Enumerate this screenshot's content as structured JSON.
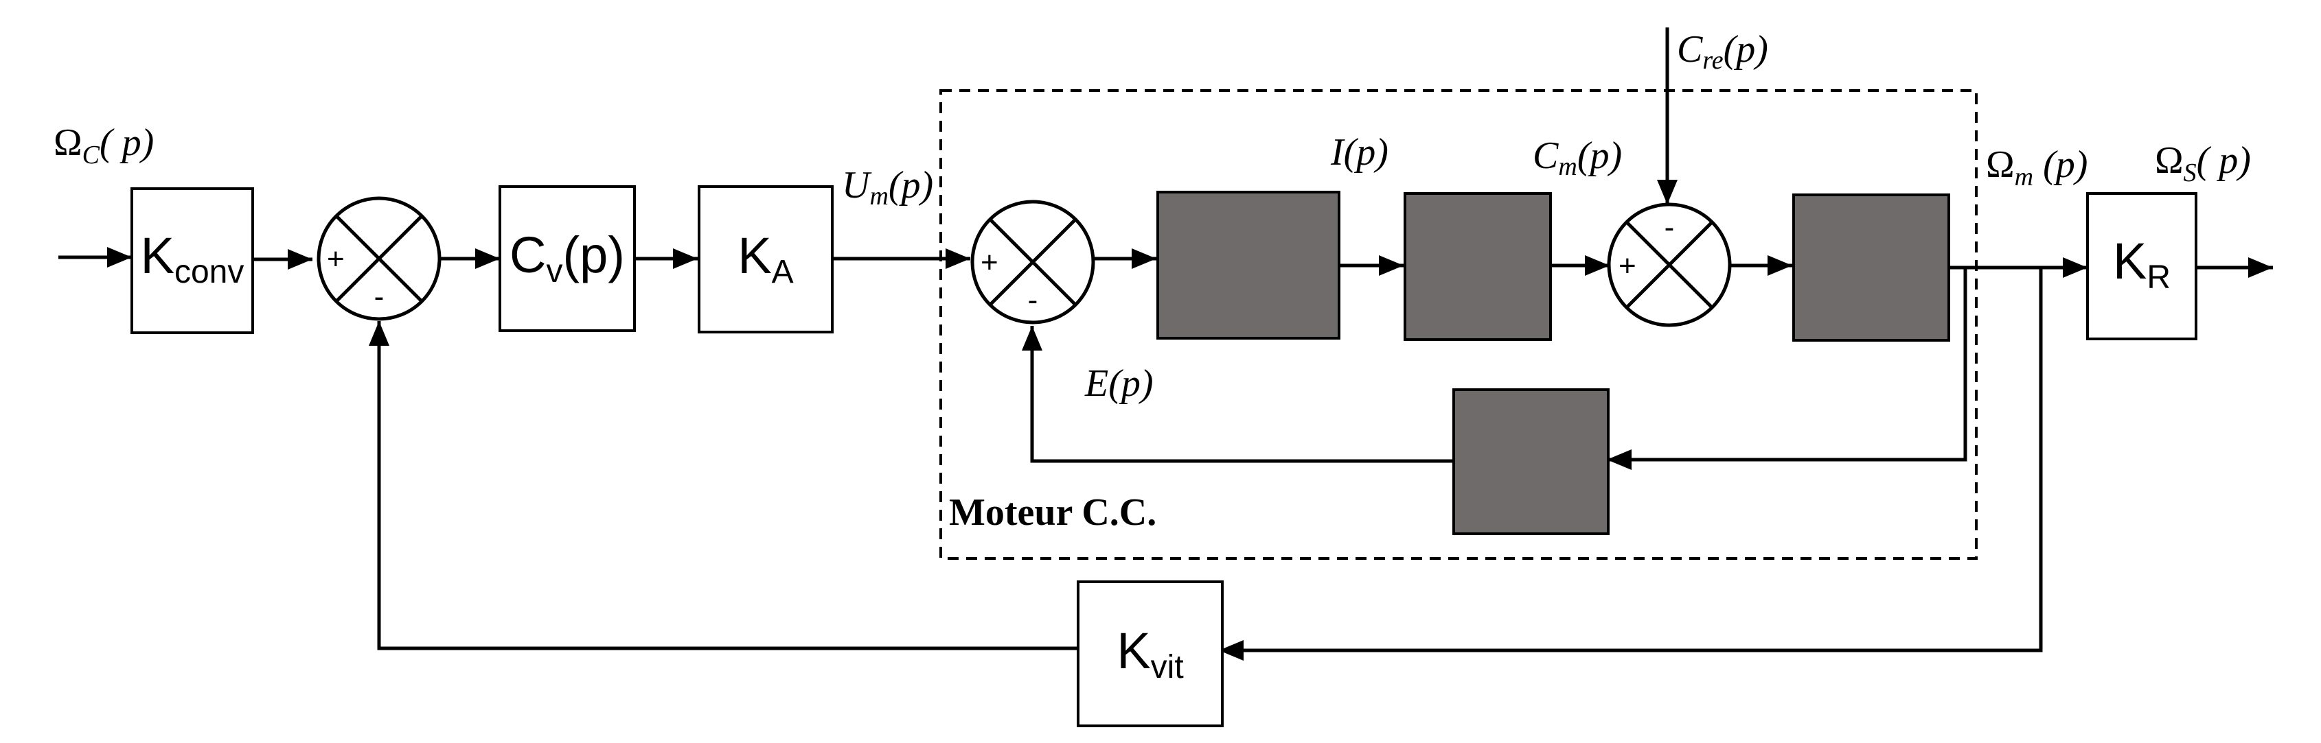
{
  "diagram": {
    "colors": {
      "stroke": "#000000",
      "hidden_block_fill": "#6f6b6a",
      "background": "#ffffff"
    },
    "blocks": {
      "k_conv": {
        "base": "K",
        "sub": "conv"
      },
      "cv": {
        "base": "C",
        "sub": "v",
        "suffix": "(p)"
      },
      "ka": {
        "base": "K",
        "sub": "A"
      },
      "kr": {
        "base": "K",
        "sub": "R"
      },
      "kvit": {
        "base": "K",
        "sub": "vit"
      }
    },
    "signals": {
      "omega_c": {
        "base": "Ω",
        "sub": "C",
        "suffix": "( p)"
      },
      "um": {
        "base": "U",
        "sub": "m",
        "suffix": "(p)"
      },
      "ip": {
        "text": "I(p)"
      },
      "cm": {
        "base": "C",
        "sub": "m",
        "suffix": "(p)"
      },
      "cre": {
        "base": "C",
        "sub": "re",
        "suffix": "(p)"
      },
      "omega_m": {
        "base": "Ω",
        "sub": "m",
        "suffix": " (p)"
      },
      "omega_s": {
        "base": "Ω",
        "sub": "S",
        "suffix": "( p)"
      },
      "ep": {
        "text": "E(p)"
      }
    },
    "summers": {
      "s1": {
        "left_sign": "+",
        "bottom_sign": "-"
      },
      "s2": {
        "left_sign": "+",
        "bottom_sign": "-"
      },
      "s3": {
        "left_sign": "+",
        "top_sign": "-"
      }
    },
    "motor_group": {
      "label": "Moteur C.C."
    }
  }
}
